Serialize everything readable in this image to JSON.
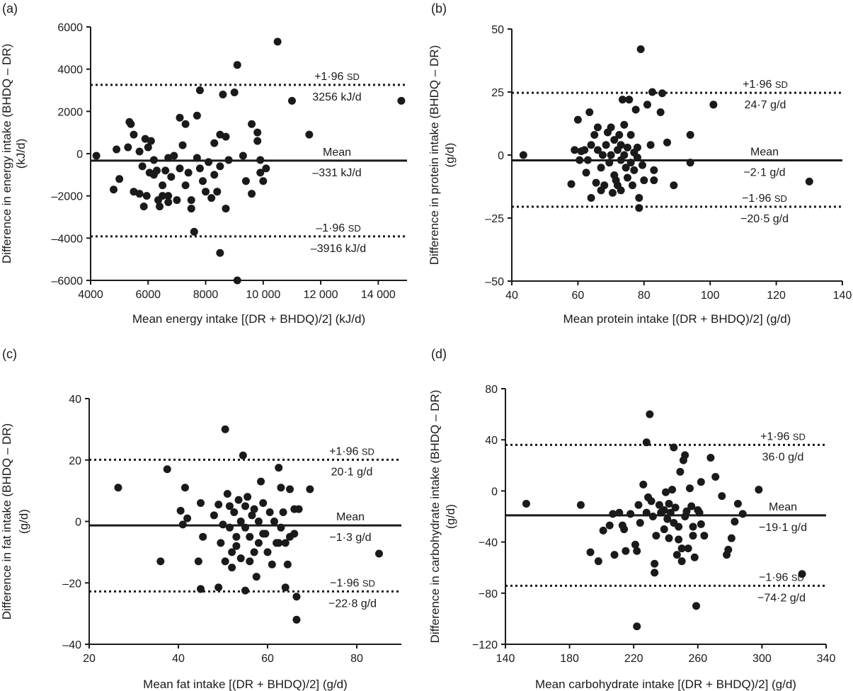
{
  "figure": {
    "background": "#ffffff",
    "ink": "#1a1a1a"
  },
  "chart_data": [
    {
      "type": "scatter",
      "panel_label": "(a)",
      "xlabel": "Mean energy intake [(DR + BHDQ)/2] (kJ/d)",
      "ylabel_lines": [
        "Difference in energy intake (BHDQ – DR)",
        "(kJ/d)"
      ],
      "xlim": [
        4000,
        15000
      ],
      "ylim": [
        -6000,
        6000
      ],
      "xticks": [
        4000,
        6000,
        8000,
        10000,
        12000,
        14000
      ],
      "xtick_labels": [
        "4000",
        "6000",
        "8000",
        "10 000",
        "12 000",
        "14 000"
      ],
      "yticks": [
        -6000,
        -4000,
        -2000,
        0,
        2000,
        4000,
        6000
      ],
      "ytick_labels": [
        "–6000",
        "–4000",
        "–2000",
        "0",
        "2000",
        "4000",
        "6000"
      ],
      "lines": {
        "upper": {
          "y": 3256,
          "sd_prefix": "+1·96 ",
          "sd_unit": "SD",
          "value_label": "3256 kJ/d"
        },
        "mean": {
          "y": -331,
          "label": "Mean",
          "value_label": "–331 kJ/d"
        },
        "lower": {
          "y": -3916,
          "sd_prefix": "–1·96 ",
          "sd_unit": "SD",
          "value_label": "–3916 kJ/d"
        }
      },
      "points": [
        [
          4200,
          -100
        ],
        [
          4800,
          -1700
        ],
        [
          4900,
          200
        ],
        [
          5000,
          -1200
        ],
        [
          5300,
          300
        ],
        [
          5350,
          1500
        ],
        [
          5400,
          1400
        ],
        [
          5500,
          900
        ],
        [
          5500,
          -1800
        ],
        [
          5700,
          -1900
        ],
        [
          5700,
          100
        ],
        [
          5800,
          -600
        ],
        [
          5850,
          -2500
        ],
        [
          5900,
          700
        ],
        [
          5950,
          -2000
        ],
        [
          6000,
          300
        ],
        [
          6050,
          -900
        ],
        [
          6100,
          600
        ],
        [
          6200,
          -300
        ],
        [
          6200,
          -1000
        ],
        [
          6300,
          -800
        ],
        [
          6350,
          -2200
        ],
        [
          6400,
          -2500
        ],
        [
          6500,
          -1500
        ],
        [
          6500,
          -2000
        ],
        [
          6600,
          -800
        ],
        [
          6700,
          -2300
        ],
        [
          6700,
          -2000
        ],
        [
          6700,
          -200
        ],
        [
          6800,
          -1100
        ],
        [
          6900,
          -100
        ],
        [
          7000,
          -2200
        ],
        [
          7100,
          -700
        ],
        [
          7100,
          1700
        ],
        [
          7200,
          400
        ],
        [
          7300,
          1400
        ],
        [
          7300,
          -1500
        ],
        [
          7400,
          -900
        ],
        [
          7500,
          -2600
        ],
        [
          7500,
          -2200
        ],
        [
          7600,
          -3700
        ],
        [
          7700,
          1800
        ],
        [
          7800,
          3000
        ],
        [
          7700,
          -200
        ],
        [
          7800,
          -700
        ],
        [
          7900,
          -1300
        ],
        [
          8000,
          -1800
        ],
        [
          8100,
          -400
        ],
        [
          8200,
          -2100
        ],
        [
          8300,
          500
        ],
        [
          8300,
          -1000
        ],
        [
          8400,
          -1800
        ],
        [
          8500,
          900
        ],
        [
          8500,
          -600
        ],
        [
          8500,
          -4700
        ],
        [
          8600,
          2800
        ],
        [
          8700,
          -2600
        ],
        [
          8700,
          800
        ],
        [
          8800,
          -300
        ],
        [
          9000,
          2900
        ],
        [
          9100,
          4200
        ],
        [
          9100,
          -6000
        ],
        [
          9300,
          -100
        ],
        [
          9400,
          -1300
        ],
        [
          9600,
          1400
        ],
        [
          9600,
          -1900
        ],
        [
          9800,
          1000
        ],
        [
          9800,
          600
        ],
        [
          9900,
          -900
        ],
        [
          9900,
          -300
        ],
        [
          10000,
          -1300
        ],
        [
          10100,
          -700
        ],
        [
          10500,
          5300
        ],
        [
          11000,
          2500
        ],
        [
          11600,
          900
        ],
        [
          14800,
          2500
        ]
      ]
    },
    {
      "type": "scatter",
      "panel_label": "(b)",
      "xlabel": "Mean protein intake [(DR + BHDQ)/2] (g/d)",
      "ylabel_lines": [
        "Difference in protein intake (BHDQ – DR)",
        "(g/d)"
      ],
      "xlim": [
        40,
        140
      ],
      "ylim": [
        -50,
        50
      ],
      "xticks": [
        40,
        60,
        80,
        100,
        120,
        140
      ],
      "xtick_labels": [
        "40",
        "60",
        "80",
        "100",
        "120",
        "140"
      ],
      "yticks": [
        -50,
        -25,
        0,
        25,
        50
      ],
      "ytick_labels": [
        "–50",
        "–25",
        "0",
        "25",
        "50"
      ],
      "lines": {
        "upper": {
          "y": 24.7,
          "sd_prefix": "+1·96 ",
          "sd_unit": "SD",
          "value_label": "24·7 g/d"
        },
        "mean": {
          "y": -2.1,
          "label": "Mean",
          "value_label": "−2·1 g/d"
        },
        "lower": {
          "y": -20.5,
          "sd_prefix": "−1·96 ",
          "sd_unit": "SD",
          "value_label": "−20·5 g/d"
        }
      },
      "points": [
        [
          43.5,
          0
        ],
        [
          58,
          -11.5
        ],
        [
          59,
          2
        ],
        [
          60,
          14
        ],
        [
          60.5,
          -2
        ],
        [
          61,
          1.5
        ],
        [
          62,
          2
        ],
        [
          62.5,
          -7
        ],
        [
          63,
          -2
        ],
        [
          63.5,
          17
        ],
        [
          64,
          4
        ],
        [
          64,
          -17
        ],
        [
          65,
          8
        ],
        [
          65.5,
          -11
        ],
        [
          66,
          11
        ],
        [
          66,
          2
        ],
        [
          67,
          -5
        ],
        [
          67,
          -14
        ],
        [
          67.5,
          0
        ],
        [
          68,
          -12
        ],
        [
          68.5,
          4
        ],
        [
          69,
          9
        ],
        [
          69.5,
          -3
        ],
        [
          70,
          11
        ],
        [
          70,
          0
        ],
        [
          70.5,
          -15
        ],
        [
          71,
          6
        ],
        [
          71,
          -8
        ],
        [
          71.5,
          -10
        ],
        [
          72,
          2
        ],
        [
          72,
          -12
        ],
        [
          72.5,
          8
        ],
        [
          73,
          -2
        ],
        [
          73,
          4
        ],
        [
          73,
          -14
        ],
        [
          73.5,
          22
        ],
        [
          74,
          12
        ],
        [
          74,
          0
        ],
        [
          74.5,
          -5
        ],
        [
          75,
          -9
        ],
        [
          75,
          3
        ],
        [
          75.5,
          22
        ],
        [
          76,
          8
        ],
        [
          76,
          -3
        ],
        [
          76.5,
          -12
        ],
        [
          77,
          1
        ],
        [
          77,
          -6
        ],
        [
          77.5,
          18
        ],
        [
          78,
          -1
        ],
        [
          78,
          3
        ],
        [
          78.5,
          -17
        ],
        [
          78.5,
          -21
        ],
        [
          79,
          42
        ],
        [
          79.5,
          -4
        ],
        [
          80,
          -10
        ],
        [
          81,
          20
        ],
        [
          82,
          4
        ],
        [
          82.5,
          25
        ],
        [
          83,
          -6
        ],
        [
          83,
          -10
        ],
        [
          85,
          17
        ],
        [
          85.5,
          24.5
        ],
        [
          87,
          5
        ],
        [
          89,
          -12
        ],
        [
          94,
          8
        ],
        [
          94,
          -3
        ],
        [
          101,
          20
        ],
        [
          130,
          -10.5
        ]
      ]
    },
    {
      "type": "scatter",
      "panel_label": "(c)",
      "xlabel": "Mean fat intake [(DR + BHDQ)/2] (g/d)",
      "ylabel_lines": [
        "Difference in fat intake (BHDQ – DR)",
        "(g/d)"
      ],
      "xlim": [
        20,
        90
      ],
      "ylim": [
        -40,
        40
      ],
      "xticks": [
        20,
        40,
        60,
        80
      ],
      "xtick_labels": [
        "20",
        "40",
        "60",
        "80"
      ],
      "yticks": [
        -40,
        -20,
        0,
        20,
        40
      ],
      "ytick_labels": [
        "–40",
        "–20",
        "0",
        "20",
        "40"
      ],
      "lines": {
        "upper": {
          "y": 20.1,
          "sd_prefix": "+1·96 ",
          "sd_unit": "SD",
          "value_label": "20·1 g/d"
        },
        "mean": {
          "y": -1.3,
          "label": "Mean",
          "value_label": "−1·3 g/d"
        },
        "lower": {
          "y": -22.8,
          "sd_prefix": "−1·96 ",
          "sd_unit": "SD",
          "value_label": "−22·8 g/d"
        }
      },
      "points": [
        [
          26.5,
          11
        ],
        [
          36,
          -13
        ],
        [
          37.5,
          17
        ],
        [
          40.5,
          3.5
        ],
        [
          41,
          -1
        ],
        [
          41.5,
          11
        ],
        [
          42,
          1
        ],
        [
          44.5,
          -13
        ],
        [
          45,
          6
        ],
        [
          45.5,
          -5
        ],
        [
          45,
          -22
        ],
        [
          48,
          2
        ],
        [
          49,
          5.5
        ],
        [
          49,
          -21.5
        ],
        [
          49.5,
          -7
        ],
        [
          50,
          -1
        ],
        [
          50.5,
          30
        ],
        [
          50.5,
          -13
        ],
        [
          51,
          9
        ],
        [
          51.5,
          5
        ],
        [
          51.5,
          -2
        ],
        [
          52,
          -15
        ],
        [
          52,
          -10
        ],
        [
          52.5,
          3
        ],
        [
          53,
          -5
        ],
        [
          53,
          -8
        ],
        [
          53.5,
          7
        ],
        [
          54,
          0
        ],
        [
          54,
          -12
        ],
        [
          54.5,
          21.5
        ],
        [
          55,
          -2
        ],
        [
          55,
          5
        ],
        [
          55,
          -22.5
        ],
        [
          55.5,
          8
        ],
        [
          56,
          -5
        ],
        [
          56,
          -13
        ],
        [
          56.5,
          2
        ],
        [
          57,
          -10
        ],
        [
          57,
          4
        ],
        [
          57.5,
          -18
        ],
        [
          58,
          0
        ],
        [
          58,
          -7
        ],
        [
          58.5,
          13
        ],
        [
          59,
          -4
        ],
        [
          59,
          6
        ],
        [
          59.5,
          -4
        ],
        [
          60,
          -10
        ],
        [
          60.5,
          3
        ],
        [
          61,
          -14
        ],
        [
          61.5,
          0
        ],
        [
          62,
          -7
        ],
        [
          62.5,
          17.5
        ],
        [
          62.5,
          -7
        ],
        [
          63,
          11
        ],
        [
          63,
          -2
        ],
        [
          63.5,
          3
        ],
        [
          64,
          -7
        ],
        [
          64,
          -21.5
        ],
        [
          64.5,
          -14
        ],
        [
          65,
          10.5
        ],
        [
          65,
          -5
        ],
        [
          66,
          4
        ],
        [
          66,
          -4
        ],
        [
          66.5,
          -24.5
        ],
        [
          66.5,
          -32
        ],
        [
          67,
          4
        ],
        [
          69.5,
          10.5
        ],
        [
          85,
          -10.5
        ]
      ]
    },
    {
      "type": "scatter",
      "panel_label": "(d)",
      "xlabel": "Mean carbohydrate intake [(DR + BHDQ)/2] (g/d)",
      "ylabel_lines": [
        "Difference in carbohydrate intake (BHDQ – DR)",
        "(g/d)"
      ],
      "xlim": [
        140,
        340
      ],
      "ylim": [
        -120,
        80
      ],
      "xticks": [
        140,
        180,
        220,
        260,
        300,
        340
      ],
      "xtick_labels": [
        "140",
        "180",
        "220",
        "260",
        "300",
        "340"
      ],
      "yticks": [
        -120,
        -80,
        -40,
        0,
        40,
        80
      ],
      "ytick_labels": [
        "−120",
        "−80",
        "−40",
        "0",
        "40",
        "80"
      ],
      "lines": {
        "upper": {
          "y": 36.0,
          "sd_prefix": "+1·96 ",
          "sd_unit": "SD",
          "value_label": "36·0 g/d"
        },
        "mean": {
          "y": -19.1,
          "label": "Mean",
          "value_label": "−19·1 g/d"
        },
        "lower": {
          "y": -74.2,
          "sd_prefix": "−1·96 ",
          "sd_unit": "SD",
          "value_label": "−74·2 g/d"
        }
      },
      "points": [
        [
          153,
          -10
        ],
        [
          187,
          -11
        ],
        [
          193,
          -48
        ],
        [
          198,
          -55
        ],
        [
          201,
          -31
        ],
        [
          205,
          -27
        ],
        [
          207,
          -18
        ],
        [
          208,
          -50
        ],
        [
          211,
          -17
        ],
        [
          213,
          -27
        ],
        [
          214,
          -30
        ],
        [
          215,
          -47
        ],
        [
          218,
          -18
        ],
        [
          221,
          -42
        ],
        [
          222,
          -106
        ],
        [
          222,
          -47
        ],
        [
          223,
          -11
        ],
        [
          224,
          -25
        ],
        [
          226,
          5
        ],
        [
          228,
          38
        ],
        [
          228,
          -17
        ],
        [
          229,
          -5
        ],
        [
          230,
          60
        ],
        [
          231,
          -8
        ],
        [
          232,
          -20
        ],
        [
          233,
          -57
        ],
        [
          233,
          -64
        ],
        [
          234,
          -35
        ],
        [
          236,
          -11
        ],
        [
          237,
          -17
        ],
        [
          239,
          -15
        ],
        [
          239,
          -30
        ],
        [
          240,
          -1
        ],
        [
          241,
          -22
        ],
        [
          242,
          -10
        ],
        [
          242,
          -37
        ],
        [
          243,
          -17
        ],
        [
          244,
          1
        ],
        [
          245,
          -25
        ],
        [
          245,
          34
        ],
        [
          246,
          -13
        ],
        [
          247,
          -50
        ],
        [
          248,
          -28
        ],
        [
          248,
          -38
        ],
        [
          249,
          15
        ],
        [
          250,
          -45
        ],
        [
          250,
          -55
        ],
        [
          251,
          24
        ],
        [
          252,
          28
        ],
        [
          252,
          -20
        ],
        [
          253,
          -16
        ],
        [
          254,
          -45
        ],
        [
          255,
          2
        ],
        [
          256,
          -12
        ],
        [
          257,
          -35
        ],
        [
          257,
          -28
        ],
        [
          258,
          -52
        ],
        [
          259,
          -90
        ],
        [
          260,
          -15
        ],
        [
          261,
          -17
        ],
        [
          262,
          -26
        ],
        [
          262,
          7
        ],
        [
          264,
          -35
        ],
        [
          268,
          26
        ],
        [
          271,
          11
        ],
        [
          275,
          -4
        ],
        [
          278,
          -50
        ],
        [
          279,
          -46
        ],
        [
          281,
          -37
        ],
        [
          283,
          -24
        ],
        [
          285,
          -10
        ],
        [
          288,
          -18
        ],
        [
          298,
          1
        ],
        [
          325,
          -65
        ]
      ]
    }
  ]
}
